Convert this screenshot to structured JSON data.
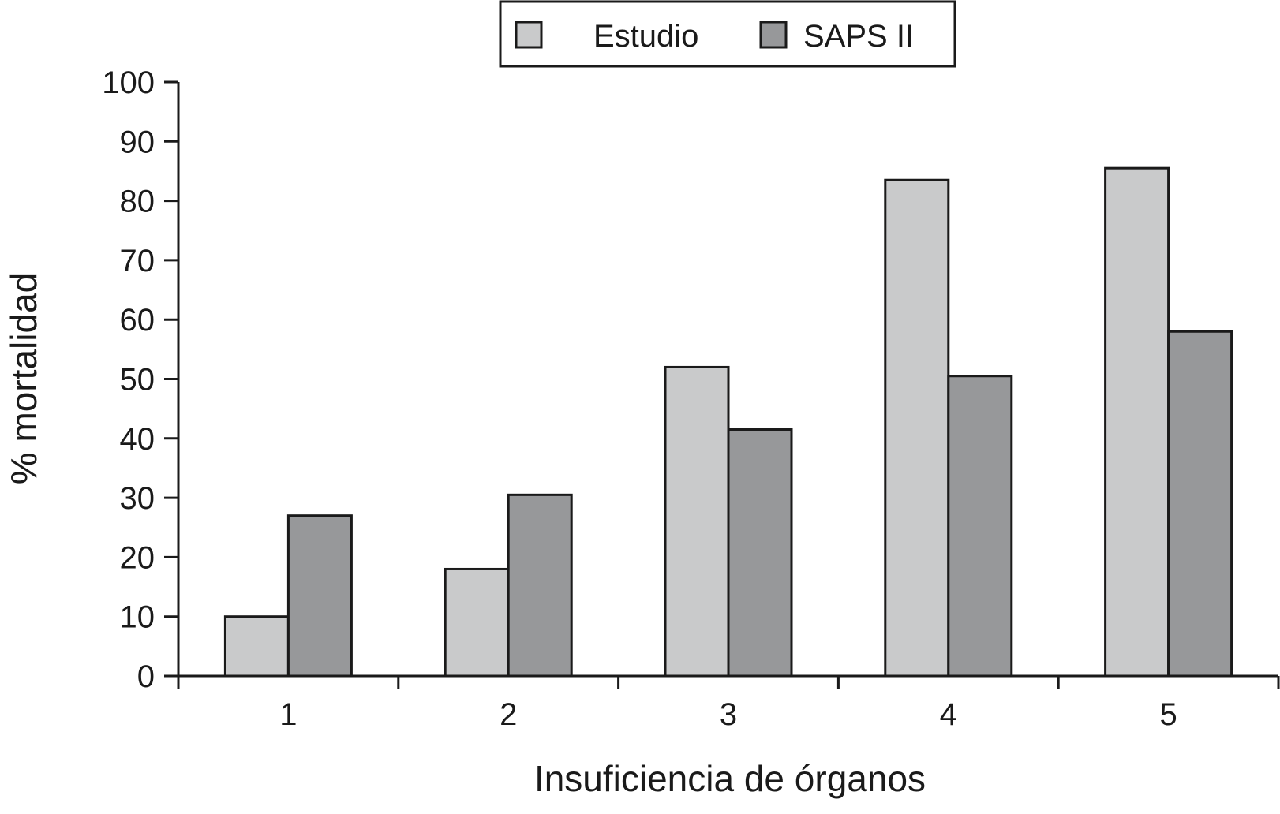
{
  "chart_data": {
    "type": "bar",
    "title": "",
    "xlabel": "Insuficiencia de órganos",
    "ylabel": "% mortalidad",
    "categories": [
      "1",
      "2",
      "3",
      "4",
      "5"
    ],
    "series": [
      {
        "name": "Estudio",
        "values": [
          10,
          18,
          52,
          83.5,
          85.5
        ],
        "color": "#c9cacb"
      },
      {
        "name": "SAPS II",
        "values": [
          27,
          30.5,
          41.5,
          50.5,
          58
        ],
        "color": "#97989a"
      }
    ],
    "ylim": [
      0,
      100
    ],
    "yticks": [
      "0",
      "10",
      "20",
      "30",
      "40",
      "50",
      "60",
      "70",
      "80",
      "90",
      "100"
    ],
    "legend_position": "top-center",
    "grid": false
  }
}
